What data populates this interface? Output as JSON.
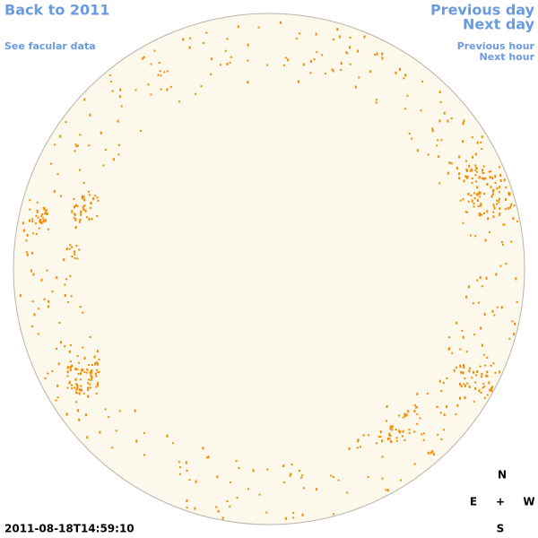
{
  "nav": {
    "back": "Back to 2011",
    "facular": "See facular data",
    "prev_day": "Previous day",
    "next_day": "Next day",
    "prev_hour": "Previous hour",
    "next_hour": "Next hour"
  },
  "timestamp": "2011-08-18T14:59:10",
  "compass": {
    "north": "N",
    "east": "E",
    "center": "+",
    "west": "W",
    "south": "S"
  }
}
